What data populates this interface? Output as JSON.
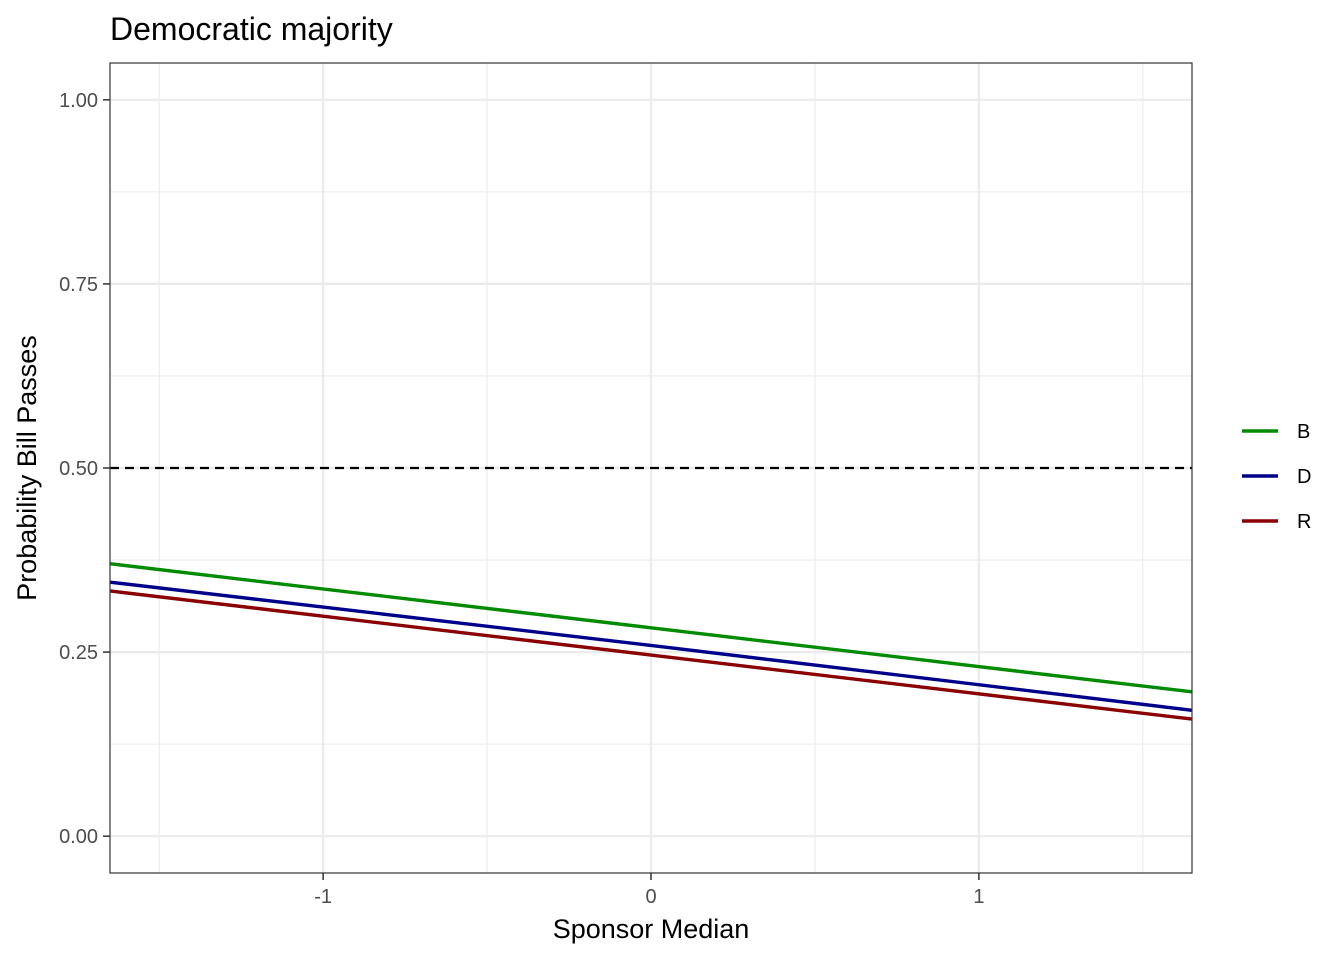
{
  "chart_data": {
    "type": "line",
    "title": "Democratic majority",
    "xlabel": "Sponsor Median",
    "ylabel": "Probability Bill Passes",
    "xlim": [
      -1.65,
      1.65
    ],
    "ylim": [
      -0.05,
      1.05
    ],
    "x_ticks": [
      -1,
      0,
      1
    ],
    "x_tick_labels": [
      "-1",
      "0",
      "1"
    ],
    "x_minor_ticks": [
      -1.5,
      -0.5,
      0.5,
      1.5
    ],
    "y_ticks": [
      0,
      0.25,
      0.5,
      0.75,
      1
    ],
    "y_tick_labels": [
      "0.00",
      "0.25",
      "0.50",
      "0.75",
      "1.00"
    ],
    "y_minor_ticks": [
      0.125,
      0.375,
      0.625,
      0.875
    ],
    "grid": true,
    "legend": {
      "position": "right",
      "title": ""
    },
    "reference_line": {
      "y": 0.5,
      "style": "dashed",
      "color": "#000000"
    },
    "series": [
      {
        "name": "B",
        "color": "#008b00",
        "x": [
          -1.65,
          0,
          1.65
        ],
        "y": [
          0.37,
          0.283,
          0.196
        ]
      },
      {
        "name": "D",
        "color": "#00008b",
        "x": [
          -1.65,
          0,
          1.65
        ],
        "y": [
          0.345,
          0.259,
          0.171
        ]
      },
      {
        "name": "R",
        "color": "#8b0000",
        "x": [
          -1.65,
          0,
          1.65
        ],
        "y": [
          0.333,
          0.246,
          0.159
        ]
      }
    ]
  }
}
